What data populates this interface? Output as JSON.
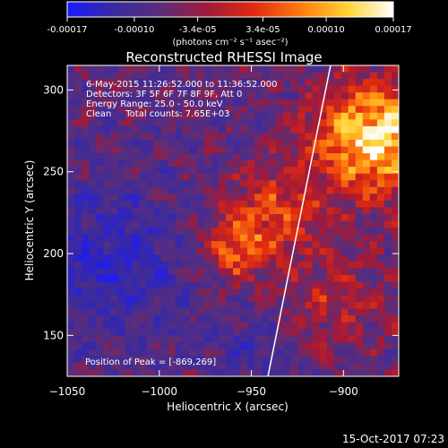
{
  "colorbar": {
    "tick_labels": [
      "-0.00017",
      "-0.00010",
      "-3.4e-05",
      "3.4e-05",
      "0.00010",
      "0.00017"
    ],
    "tick_values": [
      -0.00017,
      -0.0001,
      -3.4e-05,
      3.4e-05,
      0.0001,
      0.00017
    ],
    "range": [
      -0.00017,
      0.00017
    ],
    "units": "(photons cm⁻² s⁻¹ asec⁻²)",
    "colors": [
      "#1a1aff",
      "#3a2aa0",
      "#5a2e7a",
      "#a01a3a",
      "#e02a10",
      "#ff7a10",
      "#ffd230",
      "#ffffff"
    ]
  },
  "chart_data": {
    "type": "heatmap",
    "title": "Reconstructed RHESSI Image",
    "xlabel": "Heliocentric X (arcsec)",
    "ylabel": "Heliocentric Y (arcsec)",
    "xlim": [
      -1050,
      -870
    ],
    "ylim": [
      125,
      315
    ],
    "x_ticks": [
      -1050,
      -1000,
      -950,
      -900
    ],
    "y_ticks": [
      150,
      200,
      250,
      300
    ],
    "limb_line": {
      "x": [
        -941,
        -907
      ],
      "y": [
        125,
        315
      ]
    },
    "peak_position": [
      -869,
      269
    ],
    "annotations": [
      "6-May-2015 11:26:52.000 to 11:36:52.000",
      "Detectors: 3F 5F 6F 7F 8F 9F, Att 0",
      "Energy Range: 25.0 - 50.0 keV",
      "Clean     Total counts: 7.65E+03"
    ],
    "peak_label": "Position of Peak = [-869,269]"
  },
  "timestamp": "15-Oct-2017 07:23"
}
